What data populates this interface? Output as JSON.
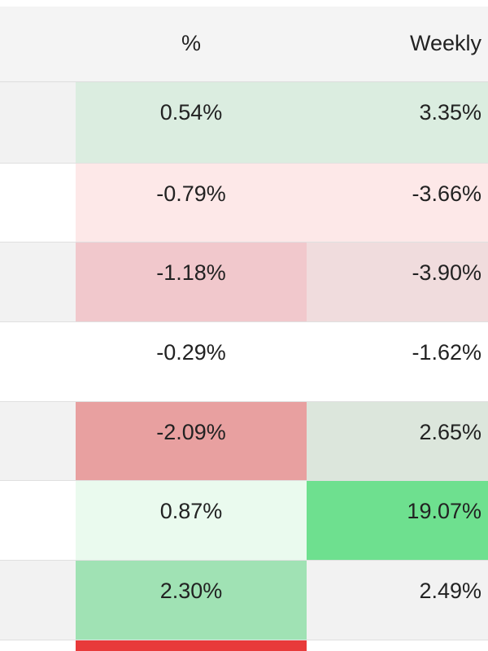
{
  "header": {
    "columns": [
      "%",
      "Weekly"
    ]
  },
  "table": {
    "rows": [
      [
        {
          "text": "0.54%",
          "color": "#dbede0"
        },
        {
          "text": "3.35%",
          "color": "#dbede0"
        }
      ],
      [
        {
          "text": "-0.79%",
          "color": "#fde8e8"
        },
        {
          "text": "-3.66%",
          "color": "#fde8e8"
        }
      ],
      [
        {
          "text": "-1.18%",
          "color": "#f1c8cc"
        },
        {
          "text": "-3.90%",
          "color": "#f0dcdd"
        }
      ],
      [
        {
          "text": "-0.29%",
          "color": "#ffffff"
        },
        {
          "text": "-1.62%",
          "color": "#ffffff"
        }
      ],
      [
        {
          "text": "-2.09%",
          "color": "#e8a0a0"
        },
        {
          "text": "2.65%",
          "color": "#dce6dc"
        }
      ],
      [
        {
          "text": "0.87%",
          "color": "#eafaee"
        },
        {
          "text": "19.07%",
          "color": "#6ee08f"
        }
      ],
      [
        {
          "text": "2.30%",
          "color": "#a0e2b4"
        },
        {
          "text": "2.49%",
          "color": "#f2f2f2"
        }
      ]
    ]
  }
}
